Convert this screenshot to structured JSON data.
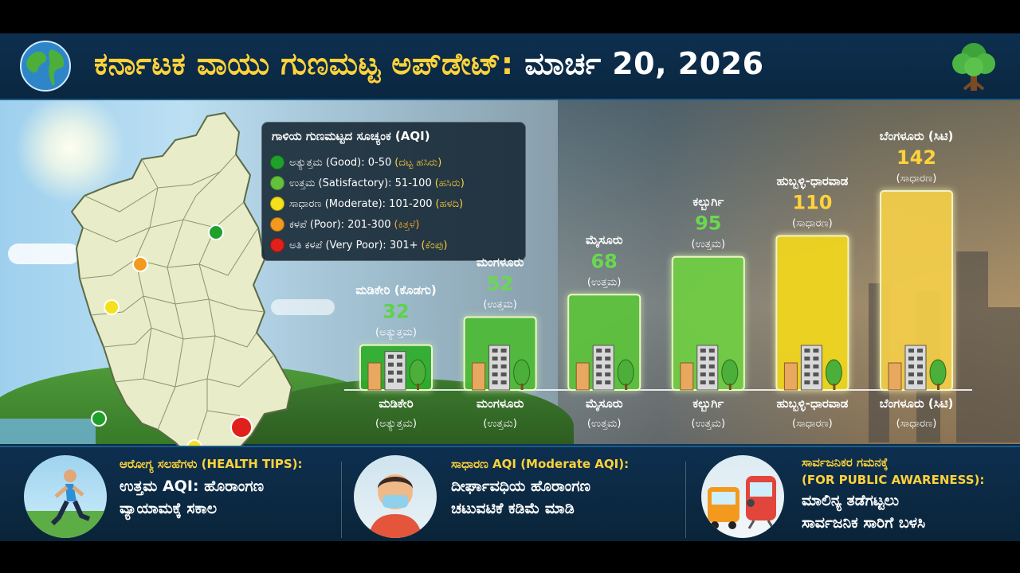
{
  "header": {
    "title": "ಕರ್ನಾಟಕ ವಾಯು ಗುಣಮಟ್ಟ ಅಪ್‌ಡೇಟ್:",
    "date": "ಮಾರ್ಚ 20, 2026"
  },
  "legend": {
    "title": "ಗಾಳಿಯ ಗುಣಮಟ್ಟದ ಸೂಚ್ಯಂಕ (AQI)",
    "items": [
      {
        "label": "ಅತ್ಯುತ್ತಮ (Good): 0-50",
        "tag": "(ದಟ್ಟ ಹಸಿರು)",
        "color": "#1fa02a",
        "tag_color": "#ffd23a"
      },
      {
        "label": "ಉತ್ತಮ (Satisfactory): 51-100",
        "tag": "(ಹಸಿರು)",
        "color": "#63c23c",
        "tag_color": "#ffd23a"
      },
      {
        "label": "ಸಾಧಾರಣ (Moderate): 101-200",
        "tag": "(ಹಳದಿ)",
        "color": "#f4e11c",
        "tag_color": "#ffd23a"
      },
      {
        "label": "ಕಳಪೆ (Poor): 201-300",
        "tag": "(ಕಿತ್ತಳೆ)",
        "color": "#f39a1e",
        "tag_color": "#f5a623"
      },
      {
        "label": "ಅತಿ ಕಳಪೆ (Very Poor): 301+",
        "tag": "(ಕೆಂಪು)",
        "color": "#e0201b",
        "tag_color": "#ffd23a"
      }
    ]
  },
  "chart_data": {
    "type": "bar",
    "categories": [
      "ಮಡಿಕೇರಿ",
      "ಮಂಗಳೂರು",
      "ಮೈಸೂರು",
      "ಕಲ್ಬುರ್ಗಿ",
      "ಹುಬ್ಬಳ್ಳಿ-ಧಾರವಾಡ",
      "ಬೆಂಗಳೂರು (ಸಿಟಿ)"
    ],
    "top_labels": [
      "ಮಡಿಕೇರಿ (ಕೊಡಗು)",
      "ಮಂಗಳೂರು",
      "ಮೈಸೂರು",
      "ಕಲ್ಬುರ್ಗಿ",
      "ಹುಬ್ಬಳ್ಳಿ-ಧಾರವಾಡ",
      "ಬೆಂಗಳೂರು (ಸಿಟಿ)"
    ],
    "values": [
      32,
      52,
      68,
      95,
      110,
      142
    ],
    "top_status": [
      "(ಅತ್ಯುತ್ತಮ)",
      "(ಉತ್ತಮ)",
      "(ಉತ್ತಮ)",
      "(ಉತ್ತಮ)",
      "(ಸಾಧಾರಣ)",
      "(ಸಾಧಾರಣ)"
    ],
    "bottom_status": [
      "(ಅತ್ಯುತ್ತಮ)",
      "(ಉತ್ತಮ)",
      "(ಉತ್ತಮ)",
      "(ಉತ್ತಮ)",
      "(ಸಾಧಾರಣ)",
      "(ಸಾಧಾರಣ)"
    ],
    "bar_colors": [
      "#2fae2c",
      "#4dbb36",
      "#5cc43a",
      "#6fd043",
      "#f3d81e",
      "#f5cf4a"
    ],
    "value_colors": [
      "#5fd24a",
      "#6ad84f",
      "#6ad84f",
      "#6ad84f",
      "#ffd23a",
      "#ffd23a"
    ],
    "title": "",
    "xlabel": "",
    "ylabel": "",
    "ylim": [
      0,
      160
    ],
    "grid": false,
    "legend": "top-left"
  },
  "map": {
    "markers": [
      {
        "color": "#1fa02a"
      },
      {
        "color": "#f39a1e"
      },
      {
        "color": "#f4e11c"
      },
      {
        "color": "#1fa02a"
      },
      {
        "color": "#e0201b"
      },
      {
        "color": "#f4e11c"
      },
      {
        "color": "#f4e11c"
      }
    ]
  },
  "footer": {
    "cards": [
      {
        "title": "ಆರೋಗ್ಯ ಸಲಹೆಗಳು (HEALTH TIPS):",
        "lines": [
          "ಉತ್ತಮ AQI: ಹೊರಾಂಗಣ",
          "ವ್ಯಾಯಾಮಕ್ಕೆ ಸಕಾಲ"
        ],
        "icon": "runner-icon"
      },
      {
        "title": "ಸಾಧಾರಣ AQI (Moderate AQI):",
        "lines": [
          "ದೀರ್ಘಾವಧಿಯ ಹೊರಾಂಗಣ",
          "ಚಟುವಟಿಕೆ ಕಡಿಮೆ ಮಾಡಿ"
        ],
        "icon": "masked-person-icon"
      },
      {
        "title": "ಸಾರ್ವಜನಿಕರ ಗಮನಕ್ಕೆ",
        "title2": "(FOR PUBLIC AWARENESS):",
        "lines": [
          "ಮಾಲಿನ್ಯ ತಡೆಗಟ್ಟಲು",
          "ಸಾರ್ವಜನಿಕ ಸಾರಿಗೆ ಬಳಸಿ"
        ],
        "icon": "bus-train-icon"
      }
    ]
  }
}
